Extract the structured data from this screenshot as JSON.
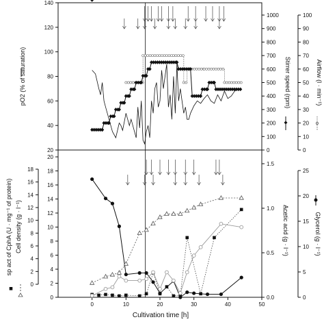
{
  "colors": {
    "ink": "#111111",
    "light": "#9a9a9a"
  },
  "chart_data": [
    {
      "type": "line",
      "panel": "top",
      "x_range": [
        -10,
        50
      ],
      "left_axis": {
        "label": "pO2 (% of saturation)",
        "range": [
          20,
          140
        ],
        "ticks": [
          "20",
          "40",
          "60",
          "80",
          "100",
          "120",
          "140"
        ]
      },
      "right_axis_1": {
        "label": "Stirrer speed (rpm)",
        "range": [
          0,
          1000
        ],
        "ticks": [
          "0",
          "100",
          "200",
          "300",
          "400",
          "500",
          "600",
          "700",
          "800",
          "900",
          "1000"
        ]
      },
      "right_axis_2": {
        "label": "Airflow (l · min⁻¹)",
        "range": [
          0,
          100
        ],
        "ticks": [
          "0",
          "10",
          "20",
          "30",
          "40",
          "50",
          "60",
          "70",
          "80",
          "90",
          "100"
        ]
      },
      "vline_x": 15.7,
      "feed_arrows_long": [
        15.5,
        16.5,
        17.5,
        19.5,
        20.5,
        22.5,
        23.8,
        28.3,
        30.5,
        33.5,
        35.5,
        37.5,
        38.8
      ],
      "feed_arrows_short": [
        9.5,
        13.5,
        15.5,
        18.5,
        22.5,
        24.5,
        27.5,
        30.5,
        37.5
      ],
      "series": [
        {
          "name": "Stirrer speed",
          "axis": "right_axis_1",
          "x": [
            0,
            3,
            3.5,
            5,
            5.5,
            6.5,
            7,
            8,
            8.5,
            9.5,
            10,
            11,
            11.5,
            12.5,
            13,
            14.5,
            15,
            16,
            16.5,
            17,
            17.5,
            25,
            25.5,
            29,
            29.5,
            32,
            32.5,
            34,
            34.5,
            36,
            36.5,
            44
          ],
          "y": [
            150,
            150,
            200,
            200,
            250,
            250,
            300,
            300,
            350,
            350,
            400,
            400,
            450,
            450,
            500,
            500,
            550,
            550,
            600,
            600,
            650,
            650,
            600,
            600,
            400,
            400,
            450,
            450,
            500,
            500,
            450,
            450
          ]
        },
        {
          "name": "Airflow",
          "axis": "right_axis_2",
          "x": [
            10,
            15,
            15,
            24,
            24,
            27,
            27,
            28,
            28,
            33,
            33,
            39,
            39,
            44
          ],
          "y": [
            50,
            50,
            70,
            70,
            70,
            70,
            50,
            50,
            60,
            60,
            60,
            60,
            50,
            50
          ]
        },
        {
          "name": "pO2",
          "axis": "left_axis",
          "x": [
            0,
            1,
            2,
            2.5,
            3,
            3.5,
            4,
            5,
            6,
            7,
            8,
            8.5,
            9,
            10,
            11,
            11.5,
            12,
            13,
            13.5,
            14,
            14.5,
            15,
            15.5,
            16,
            16.5,
            17,
            17.5,
            18,
            18.5,
            19,
            19.5,
            20,
            20.5,
            21,
            22,
            22.5,
            23,
            23.5,
            24,
            24.5,
            25,
            25.5,
            26,
            27,
            27.5,
            28,
            28.5,
            29,
            30,
            31,
            32,
            33,
            34,
            35,
            36,
            37,
            38,
            39,
            40,
            41,
            42,
            43,
            44
          ],
          "y": [
            85,
            82,
            70,
            65,
            75,
            60,
            55,
            45,
            35,
            30,
            42,
            40,
            36,
            50,
            40,
            45,
            40,
            30,
            55,
            38,
            60,
            28,
            25,
            35,
            40,
            30,
            60,
            50,
            70,
            75,
            55,
            60,
            85,
            70,
            90,
            55,
            65,
            45,
            80,
            50,
            90,
            60,
            70,
            50,
            55,
            45,
            45,
            50,
            56,
            60,
            58,
            62,
            65,
            60,
            58,
            65,
            60,
            68,
            62,
            64,
            68,
            70,
            70
          ]
        }
      ]
    },
    {
      "type": "line",
      "panel": "bottom",
      "xlabel": "Cultivation time [h]",
      "x_range": [
        -10,
        50
      ],
      "x_ticks": [
        "0",
        "10",
        "20",
        "30",
        "40",
        "50"
      ],
      "left_axis": {
        "label": "sp act of CphA (U · mg⁻¹ of protein)",
        "range": [
          0,
          20
        ],
        "ticks": [
          "0",
          "2",
          "4",
          "6",
          "8",
          "10",
          "12",
          "14",
          "16",
          "18",
          "20"
        ]
      },
      "left_axis_2": {
        "label": "Cell density (g · l⁻¹)",
        "range": [
          0,
          18
        ],
        "ticks": [
          "0",
          "2",
          "4",
          "6",
          "8",
          "10",
          "12",
          "14",
          "16",
          "18"
        ]
      },
      "right_axis_1": {
        "label": "Acetic acid (g · l⁻¹)",
        "range": [
          0,
          1.6
        ],
        "ticks": [
          "0.0",
          "0.5",
          "1.0",
          "1.5"
        ]
      },
      "right_axis_2": {
        "label": "Glycerol (g · l⁻¹)",
        "range": [
          0,
          25
        ],
        "ticks": [
          "0",
          "5",
          "10",
          "15",
          "20",
          "25"
        ]
      },
      "vline_x": 15.7,
      "feed_arrows_long": [
        16,
        17.5,
        20,
        22.5,
        24.5,
        27.5,
        30,
        36.5,
        37.5
      ],
      "feed_arrows_short": [
        10.5,
        15.5,
        18,
        24.5,
        27.5,
        31.5,
        38.5
      ],
      "series": [
        {
          "name": "Glycerol",
          "axis": "right_axis_2",
          "marker": "filled-circle",
          "x": [
            0,
            4,
            6,
            8,
            10,
            14,
            16,
            18,
            20,
            24,
            26,
            28,
            30,
            34,
            38,
            44
          ],
          "y": [
            23.3,
            19.5,
            18.5,
            14,
            4.5,
            4.8,
            4.8,
            3,
            0.8,
            3.2,
            0,
            1,
            0.8,
            0.6,
            0.6,
            3.9
          ]
        },
        {
          "name": "sp act of CphA",
          "axis": "left_axis",
          "marker": "filled-square",
          "x": [
            0,
            2,
            4,
            6,
            8,
            10,
            14,
            16,
            18,
            20,
            22,
            24,
            26,
            28,
            32,
            36,
            44
          ],
          "y": [
            0.4,
            0.3,
            0.4,
            0.3,
            0.2,
            0.3,
            0.2,
            0.5,
            3.5,
            0.5,
            1.5,
            0.2,
            0.3,
            8.5,
            0.5,
            8.5,
            12.5
          ]
        },
        {
          "name": "Cell density",
          "axis": "left_axis_2",
          "marker": "open-triangle",
          "x": [
            0,
            4,
            6,
            8,
            10,
            14,
            16,
            18,
            20,
            22,
            24,
            26,
            28,
            30,
            32,
            38,
            44
          ],
          "y": [
            0.2,
            1.2,
            1.5,
            1.8,
            3.2,
            8,
            8.5,
            9.5,
            10.5,
            11,
            11,
            11,
            11.5,
            12,
            12.5,
            13.5,
            13.5
          ]
        },
        {
          "name": "Acetic acid",
          "axis": "right_axis_1",
          "marker": "open-circle",
          "x": [
            0,
            4,
            6,
            8,
            10,
            14,
            16,
            18,
            20,
            22,
            24,
            26,
            28,
            30,
            32,
            38,
            44
          ],
          "y": [
            0.02,
            0.1,
            0.12,
            0.25,
            0.2,
            0.2,
            0.22,
            0.3,
            0.1,
            0.3,
            0.2,
            0.05,
            0.3,
            0.5,
            0.6,
            0.88,
            0.84
          ]
        }
      ]
    }
  ]
}
